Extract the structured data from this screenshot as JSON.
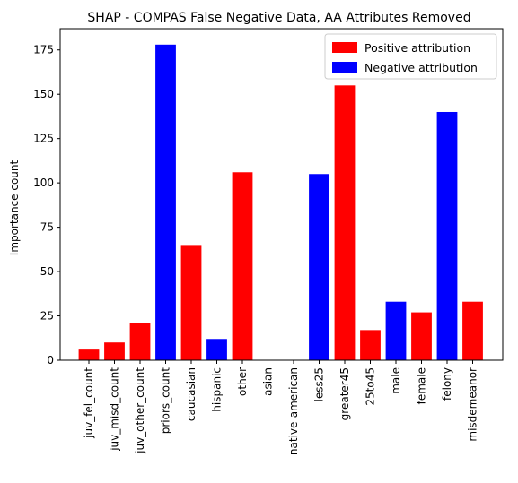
{
  "chart_data": {
    "type": "bar",
    "title": "SHAP - COMPAS False Negative Data, AA Attributes Removed",
    "xlabel": "",
    "ylabel": "Importance count",
    "ylim": [
      0,
      187
    ],
    "yticks": [
      0,
      25,
      50,
      75,
      100,
      125,
      150,
      175
    ],
    "grid": false,
    "legend_position": "top-right",
    "categories": [
      "juv_fel_count",
      "juv_misd_count",
      "juv_other_count",
      "priors_count",
      "caucasian",
      "hispanic",
      "other",
      "asian",
      "native-american",
      "less25",
      "greater45",
      "25to45",
      "male",
      "female",
      "felony",
      "misdemeanor"
    ],
    "values": [
      6,
      10,
      21,
      178,
      65,
      12,
      106,
      0,
      0,
      105,
      155,
      17,
      33,
      27,
      140,
      33
    ],
    "attribution": [
      "positive",
      "positive",
      "positive",
      "negative",
      "positive",
      "negative",
      "positive",
      "positive",
      "positive",
      "negative",
      "positive",
      "positive",
      "negative",
      "positive",
      "negative",
      "positive"
    ],
    "series": [
      {
        "name": "Positive attribution",
        "key": "positive",
        "color": "#ff0000"
      },
      {
        "name": "Negative attribution",
        "key": "negative",
        "color": "#0000ff"
      }
    ]
  }
}
